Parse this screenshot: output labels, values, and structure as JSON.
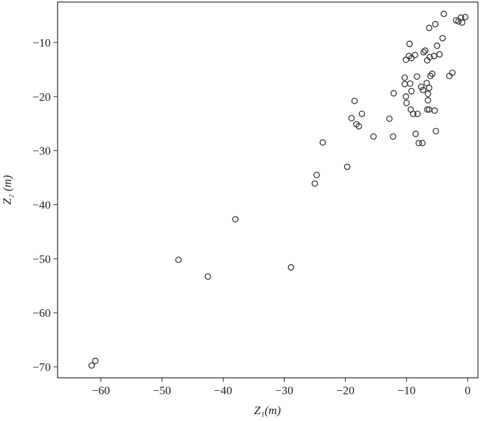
{
  "chart_data": {
    "type": "scatter",
    "x_label": "Z₁(m)",
    "y_label": "Z₂ (m)",
    "xlim": [
      -67.07,
      1.68
    ],
    "ylim": [
      -72.03,
      -2.52
    ],
    "xticks": [
      {
        "value": -60,
        "label": "−60"
      },
      {
        "value": -50,
        "label": "−50"
      },
      {
        "value": -40,
        "label": "−40"
      },
      {
        "value": -30,
        "label": "−30"
      },
      {
        "value": -20,
        "label": "−20"
      },
      {
        "value": -10,
        "label": "−10"
      },
      0
    ],
    "yticks": [
      {
        "value": -70,
        "label": "−70"
      },
      {
        "value": -60,
        "label": "−60"
      },
      {
        "value": -50,
        "label": "−50"
      },
      {
        "value": -40,
        "label": "−40"
      },
      {
        "value": -30,
        "label": "−30"
      },
      {
        "value": -20,
        "label": "−20"
      },
      {
        "value": -10,
        "label": "−10"
      }
    ],
    "color": "#333333",
    "x": [
      -61.5,
      -60.9,
      -47.3,
      -42.5,
      -38.0,
      -28.9,
      -25.0,
      -24.7,
      -19.7,
      -23.7,
      -18.2,
      -17.8,
      -19.0,
      -17.3,
      -18.5,
      -15.4,
      -12.8,
      -12.2,
      -12.1,
      -10.3,
      -10.3,
      -10.1,
      -10.0,
      -9.5,
      -10.1,
      -9.6,
      -9.2,
      -8.6,
      -9.4,
      -9.2,
      -9.3,
      -8.9,
      -8.3,
      -8.2,
      -8.5,
      -8.0,
      -7.4,
      -7.6,
      -7.3,
      -7.2,
      -6.95,
      -6.7,
      -6.5,
      -6.5,
      -6.6,
      -6.3,
      -6.6,
      -6.2,
      -6.3,
      -6.3,
      -6.1,
      -5.8,
      -5.5,
      -5.4,
      -5.2,
      -5.3,
      -5.0,
      -4.6,
      -4.1,
      -3.9,
      -3.0,
      -2.5,
      -1.9,
      -1.5,
      -1.1,
      -0.9,
      -0.4
    ],
    "values": [
      -69.75,
      -68.9,
      -50.2,
      -53.3,
      -42.7,
      -51.6,
      -36.1,
      -34.5,
      -33.0,
      -28.5,
      -25.1,
      -25.5,
      -24.0,
      -23.2,
      -20.8,
      -27.4,
      -24.1,
      -27.4,
      -19.4,
      -16.5,
      -17.7,
      -20.0,
      -21.2,
      -10.25,
      -13.2,
      -12.5,
      -12.9,
      -12.3,
      -17.6,
      -19.0,
      -22.4,
      -23.2,
      -16.3,
      -23.2,
      -26.9,
      -28.6,
      -28.6,
      -18.2,
      -18.8,
      -11.8,
      -11.5,
      -17.5,
      -19.5,
      -20.7,
      -22.4,
      -22.4,
      -13.3,
      -12.7,
      -18.4,
      -7.3,
      -16.2,
      -15.8,
      -12.5,
      -22.6,
      -26.4,
      -6.6,
      -10.6,
      -12.2,
      -9.2,
      -4.7,
      -16.2,
      -15.6,
      -5.9,
      -6.1,
      -5.4,
      -6.3,
      -5.3
    ]
  }
}
